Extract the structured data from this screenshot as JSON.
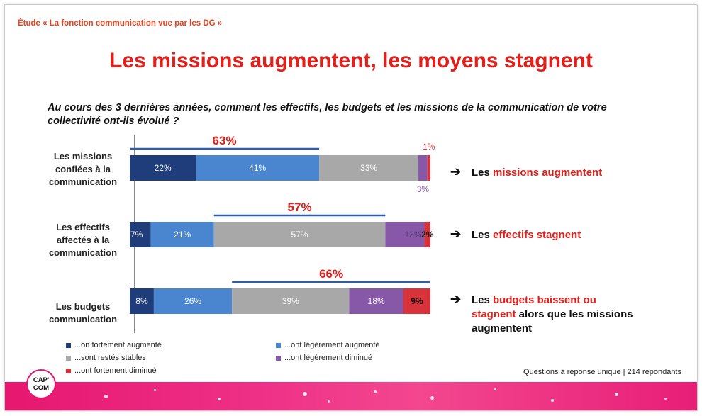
{
  "header": {
    "study": "Étude « La fonction communication vue par les DG »",
    "title": "Les missions augmentent, les moyens stagnent",
    "question": "Au cours des 3 dernières années, comment les effectifs, les budgets et les missions de la communication de votre collectivité ont-ils évolué ?"
  },
  "colors": {
    "fortement_augmente": "#1f3d7a",
    "legerement_augmente": "#4a86cf",
    "stables": "#a8a8a8",
    "legerement_diminue": "#8858a8",
    "fortement_diminue": "#d8333a",
    "accent": "#e0201b"
  },
  "chart_data": {
    "type": "bar",
    "orientation": "horizontal",
    "stacked": true,
    "categories": [
      "Les missions confiées à la communication",
      "Les effectifs affectés à la communication",
      "Les budgets communication"
    ],
    "series": [
      {
        "name": "...on fortement augmenté",
        "values": [
          22,
          7,
          8
        ],
        "labels": [
          "22%",
          "7%",
          "8%"
        ]
      },
      {
        "name": "...ont légèrement augmenté",
        "values": [
          41,
          21,
          26
        ],
        "labels": [
          "41%",
          "21%",
          "26%"
        ]
      },
      {
        "name": "...sont restés stables",
        "values": [
          33,
          57,
          39
        ],
        "labels": [
          "33%",
          "57%",
          "39%"
        ]
      },
      {
        "name": "...ont légèrement diminué",
        "values": [
          3,
          13,
          18
        ],
        "labels": [
          "3%",
          "13%",
          "18%"
        ]
      },
      {
        "name": "...ont fortement diminué",
        "values": [
          1,
          2,
          9
        ],
        "labels": [
          "1%",
          "2%",
          "9%"
        ]
      }
    ],
    "brackets": [
      {
        "label": "63%",
        "from": 0,
        "to": 63
      },
      {
        "label": "57%",
        "from": 28,
        "to": 85
      },
      {
        "label": "66%",
        "from": 34,
        "to": 100
      }
    ],
    "xlim": [
      0,
      100
    ]
  },
  "labels": {
    "cat1": [
      "Les missions",
      "confiées à la",
      "communication"
    ],
    "cat2": [
      "Les effectifs",
      "affectés à la",
      "communication"
    ],
    "cat3": [
      "Les budgets",
      "communication"
    ]
  },
  "conclusions": {
    "c1_prefix": "Les ",
    "c1_hl": "missions augmentent",
    "c2_prefix": "Les ",
    "c2_hl": "effectifs stagnent",
    "c3_prefix": "Les ",
    "c3_hl": "budgets baissent ou stagnent",
    "c3_suffix": " alors que les missions augmentent",
    "arrow": "➔"
  },
  "legend": [
    "...on fortement augmenté",
    "...ont légèrement augmenté",
    "...sont restés stables",
    "...ont légèrement diminué",
    "...ont fortement diminué"
  ],
  "source": "Questions à réponse unique | 214 répondants",
  "logo": {
    "line1": "CAP'",
    "line2": "COM"
  }
}
